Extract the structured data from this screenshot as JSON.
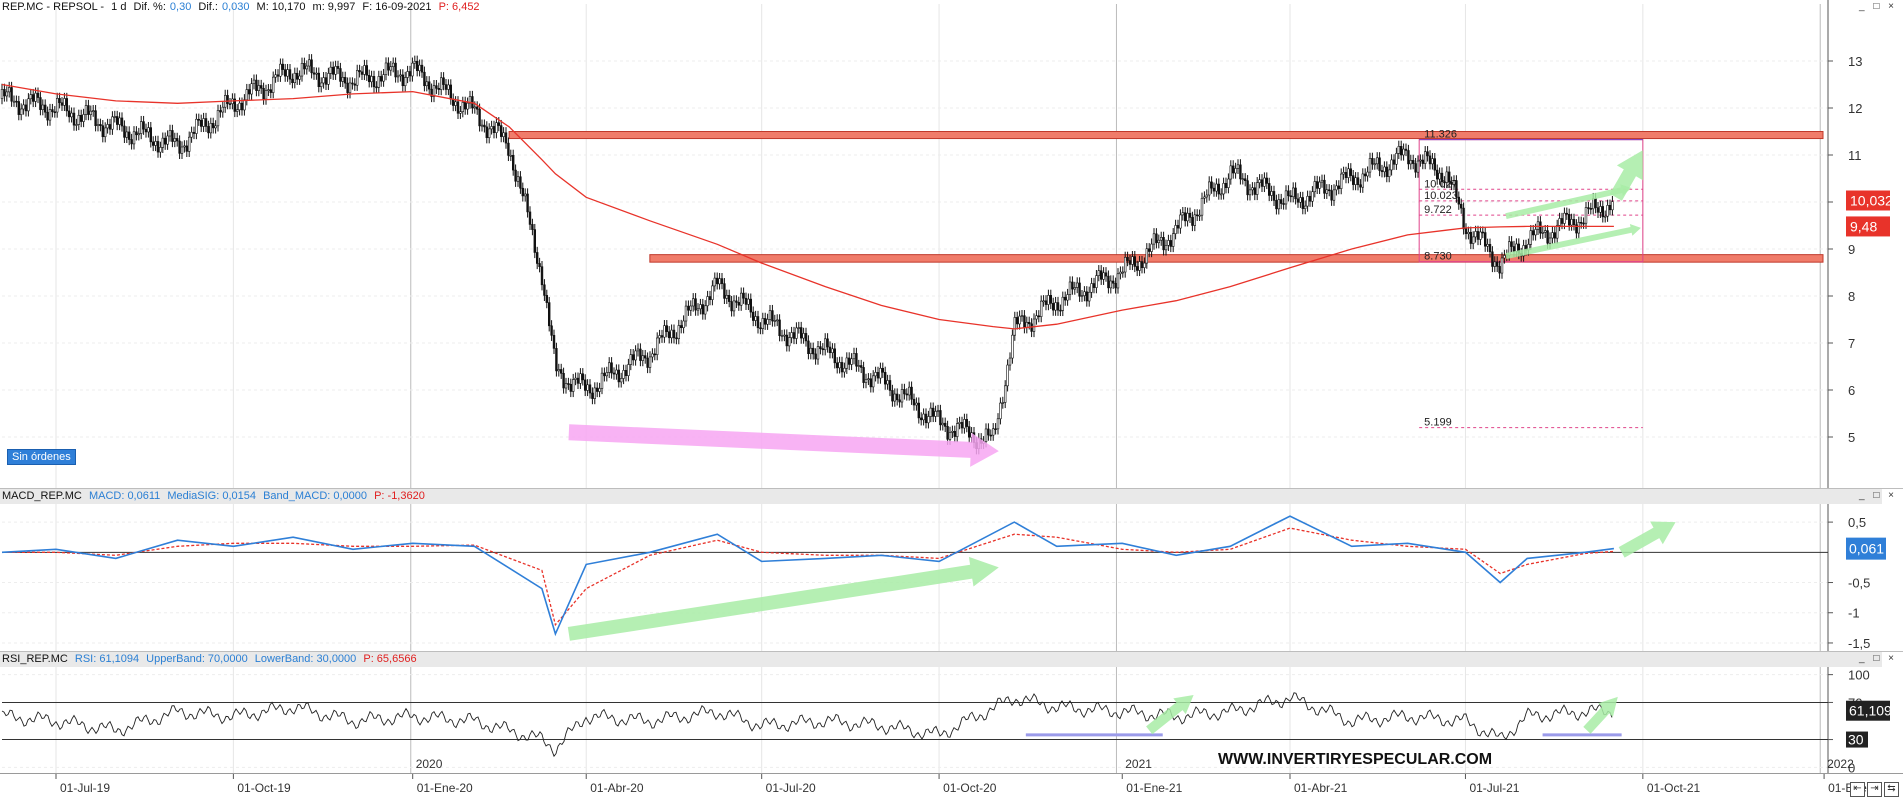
{
  "price_header": {
    "symbol": "REP.MC - REPSOL -",
    "period": "1 d",
    "dif_pct_label": "Dif. %:",
    "dif_pct_value": "0,30",
    "dif_label": "Dif.:",
    "dif_value": "0,030",
    "max": "M: 10,170",
    "min": "m: 9,997",
    "date": "F: 16-09-2021",
    "p_value": "P: 6,452"
  },
  "macd_header": {
    "name": "MACD_REP.MC",
    "macd": "MACD: 0,0611",
    "signal": "MediaSIG: 0,0154",
    "band": "Band_MACD: 0,0000",
    "p_value": "P: -1,3620"
  },
  "rsi_header": {
    "name": "RSI_REP.MC",
    "rsi": "RSI: 61,1094",
    "upper": "UpperBand: 70,0000",
    "lower": "LowerBand: 30,0000",
    "p_value": "P: 65,6566"
  },
  "sin_ordenes": "Sin órdenes",
  "window_controls": "_ □ ×",
  "watermark": "WWW.INVERTIRYESPECULAR.COM",
  "price_tags": {
    "last": "10,032",
    "ma": "9,48"
  },
  "macd_tag": "0,061",
  "rsi_tags": {
    "value": "61,109",
    "lower": "30"
  },
  "fib_levels": [
    "11.326",
    "10.027",
    "10.023",
    "9.722",
    "8.730",
    "5.199"
  ],
  "year_labels": [
    "2020",
    "2021",
    "2022"
  ],
  "date_labels": [
    "01-Jul-19",
    "01-Oct-19",
    "01-Ene-20",
    "01-Abr-20",
    "01-Jul-20",
    "01-Oct-20",
    "01-Ene-21",
    "01-Abr-21",
    "01-Jul-21",
    "01-Oct-21",
    "01-Ene-"
  ],
  "nav_buttons": [
    "⇤",
    "⇥",
    "⇆"
  ],
  "colors": {
    "price": "#111111",
    "ma200": "#e8332a",
    "macd": "#2f7fd8",
    "signal": "#e8332a",
    "zone": "#f07c6a",
    "pink_arrow": "#f7a6f2",
    "green_arrow": "#a8ecA6"
  },
  "chart_data": [
    {
      "type": "line",
      "title": "",
      "x": [
        "2019-06-03",
        "2019-07-01",
        "2019-08-01",
        "2019-09-02",
        "2019-10-01",
        "2019-11-01",
        "2019-12-02",
        "2020-01-02",
        "2020-02-03",
        "2020-02-21",
        "2020-03-09",
        "2020-03-16",
        "2020-04-01",
        "2020-05-04",
        "2020-06-08",
        "2020-07-01",
        "2020-08-03",
        "2020-09-01",
        "2020-10-01",
        "2020-10-29",
        "2020-11-09",
        "2020-12-01",
        "2021-01-04",
        "2021-02-01",
        "2021-03-01",
        "2021-04-01",
        "2021-05-03",
        "2021-06-01",
        "2021-06-21",
        "2021-07-01",
        "2021-07-19",
        "2021-08-02",
        "2021-09-01",
        "2021-09-16"
      ],
      "series": [
        {
          "values": [
            12.2,
            12.0,
            11.6,
            11.2,
            12.1,
            12.8,
            12.6,
            12.8,
            11.9,
            11.2,
            8.5,
            6.4,
            6.0,
            6.8,
            8.2,
            7.5,
            6.8,
            6.2,
            5.3,
            4.9,
            7.3,
            7.9,
            8.5,
            9.4,
            10.6,
            10.0,
            10.5,
            11.0,
            10.6,
            9.5,
            8.7,
            9.2,
            9.7,
            10.03
          ]
        },
        {
          "values": [
            12.5,
            12.3,
            12.15,
            12.1,
            12.15,
            12.2,
            12.3,
            12.35,
            12.1,
            11.6,
            10.9,
            10.6,
            10.1,
            9.6,
            9.1,
            8.7,
            8.2,
            7.8,
            7.5,
            7.35,
            7.3,
            7.4,
            7.7,
            7.9,
            8.2,
            8.6,
            9.0,
            9.3,
            9.4,
            9.45,
            9.47,
            9.48,
            9.48,
            9.48
          ]
        }
      ],
      "ylim": [
        4,
        14
      ],
      "yticks": [
        5,
        6,
        7,
        8,
        9,
        10,
        11,
        12,
        13
      ],
      "zones": [
        [
          11.35,
          11.5
        ],
        [
          8.72,
          8.88
        ]
      ]
    },
    {
      "type": "line",
      "title": "",
      "x": [
        "2019-06-03",
        "2019-07-01",
        "2019-08-01",
        "2019-09-02",
        "2019-10-01",
        "2019-11-01",
        "2019-12-02",
        "2020-01-02",
        "2020-02-03",
        "2020-03-09",
        "2020-03-16",
        "2020-04-01",
        "2020-05-04",
        "2020-06-08",
        "2020-07-01",
        "2020-08-03",
        "2020-09-01",
        "2020-10-01",
        "2020-11-09",
        "2020-12-01",
        "2021-01-04",
        "2021-02-01",
        "2021-03-01",
        "2021-04-01",
        "2021-05-03",
        "2021-06-01",
        "2021-07-01",
        "2021-07-19",
        "2021-08-02",
        "2021-09-01",
        "2021-09-16"
      ],
      "series": [
        {
          "values": [
            0.0,
            0.05,
            -0.1,
            0.2,
            0.1,
            0.25,
            0.05,
            0.15,
            0.1,
            -0.6,
            -1.35,
            -0.2,
            0.0,
            0.3,
            -0.15,
            -0.1,
            -0.05,
            -0.15,
            0.5,
            0.1,
            0.15,
            -0.05,
            0.1,
            0.6,
            0.1,
            0.15,
            0.0,
            -0.5,
            -0.1,
            0.0,
            0.061
          ]
        },
        {
          "values": [
            0.0,
            0.0,
            -0.05,
            0.1,
            0.15,
            0.15,
            0.1,
            0.1,
            0.12,
            -0.3,
            -1.2,
            -0.6,
            -0.05,
            0.2,
            0.0,
            -0.05,
            -0.05,
            -0.1,
            0.3,
            0.25,
            0.05,
            0.0,
            0.05,
            0.4,
            0.2,
            0.1,
            0.05,
            -0.35,
            -0.2,
            -0.02,
            0.015
          ]
        }
      ],
      "ylim": [
        -1.6,
        0.75
      ],
      "yticks": [
        0.5,
        -0.5,
        -1,
        -1.5
      ]
    },
    {
      "type": "line",
      "title": "",
      "x": [
        "2019-06-03",
        "2019-07-01",
        "2019-08-01",
        "2019-09-02",
        "2019-10-01",
        "2019-11-01",
        "2019-12-02",
        "2020-01-02",
        "2020-02-03",
        "2020-03-09",
        "2020-03-16",
        "2020-04-01",
        "2020-05-04",
        "2020-06-08",
        "2020-07-01",
        "2020-08-03",
        "2020-09-01",
        "2020-10-01",
        "2020-11-09",
        "2020-12-01",
        "2021-01-04",
        "2021-02-01",
        "2021-03-01",
        "2021-04-01",
        "2021-05-03",
        "2021-06-01",
        "2021-07-01",
        "2021-07-19",
        "2021-08-02",
        "2021-09-01",
        "2021-09-16"
      ],
      "series": [
        {
          "values": [
            55,
            50,
            40,
            60,
            55,
            65,
            50,
            55,
            50,
            30,
            20,
            55,
            50,
            60,
            45,
            50,
            45,
            35,
            75,
            65,
            60,
            55,
            60,
            75,
            50,
            55,
            50,
            30,
            55,
            60,
            61.1
          ]
        }
      ],
      "ylim": [
        -5,
        105
      ],
      "yticks": [
        0,
        30,
        70,
        100
      ]
    }
  ]
}
